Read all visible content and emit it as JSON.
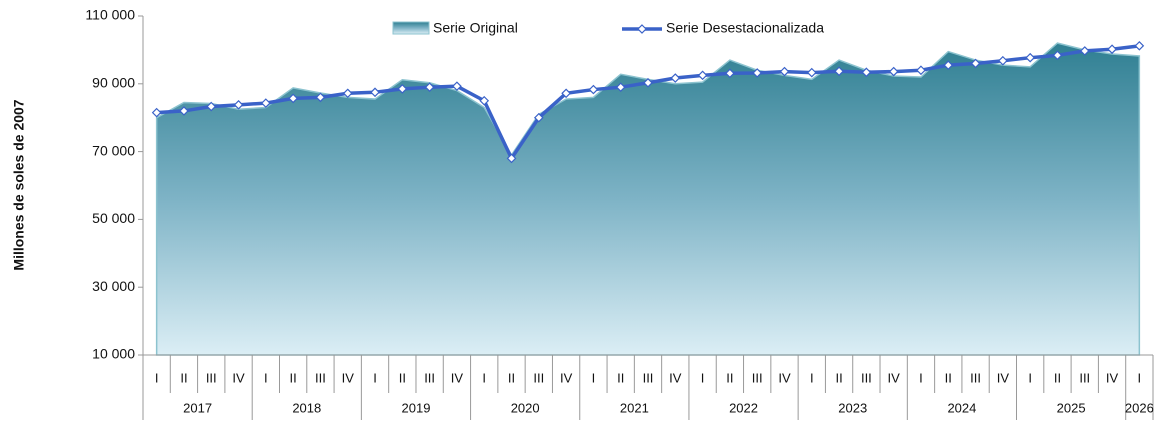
{
  "chart_data": {
    "type": "area",
    "ylabel": "Millones de soles de 2007",
    "categories": [
      "I",
      "II",
      "III",
      "IV",
      "I",
      "II",
      "III",
      "IV",
      "I",
      "II",
      "III",
      "IV",
      "I",
      "II",
      "III",
      "IV",
      "I",
      "II",
      "III",
      "IV",
      "I",
      "II",
      "III",
      "IV",
      "I",
      "II",
      "III",
      "IV",
      "I",
      "II",
      "III",
      "IV",
      "I",
      "II",
      "III",
      "IV",
      "I"
    ],
    "years": [
      "2017",
      "2018",
      "2019",
      "2020",
      "2021",
      "2022",
      "2023",
      "2024",
      "2025",
      "2026"
    ],
    "series": [
      {
        "name": "Serie Original",
        "type": "area",
        "color": "#3d8d9c",
        "values": [
          80000,
          84500,
          84200,
          82500,
          83000,
          88800,
          87300,
          86000,
          85500,
          91200,
          90300,
          88000,
          83000,
          69000,
          81000,
          85500,
          86000,
          92800,
          91300,
          90000,
          90500,
          97000,
          94000,
          92500,
          91300,
          97000,
          94000,
          92300,
          92000,
          99500,
          97000,
          95500,
          95000,
          102000,
          100000,
          98800,
          98200
        ]
      },
      {
        "name": "Serie Desestacionalizada",
        "type": "line",
        "color": "#3a62c8",
        "values": [
          81500,
          82000,
          83300,
          83800,
          84300,
          85700,
          86000,
          87200,
          87500,
          88500,
          89000,
          89300,
          85000,
          68000,
          80000,
          87200,
          88300,
          89000,
          90300,
          91700,
          92500,
          93100,
          93200,
          93600,
          93300,
          93700,
          93400,
          93600,
          94000,
          95500,
          96000,
          96800,
          97700,
          98400,
          99700,
          100200,
          101200
        ]
      }
    ],
    "ylim": [
      10000,
      110000
    ],
    "yticks": [
      {
        "value": 10000,
        "label": "10 000"
      },
      {
        "value": 30000,
        "label": "30 000"
      },
      {
        "value": 50000,
        "label": "50 000"
      },
      {
        "value": 70000,
        "label": "70 000"
      },
      {
        "value": 90000,
        "label": "90 000"
      },
      {
        "value": 110000,
        "label": "110 000"
      }
    ]
  }
}
